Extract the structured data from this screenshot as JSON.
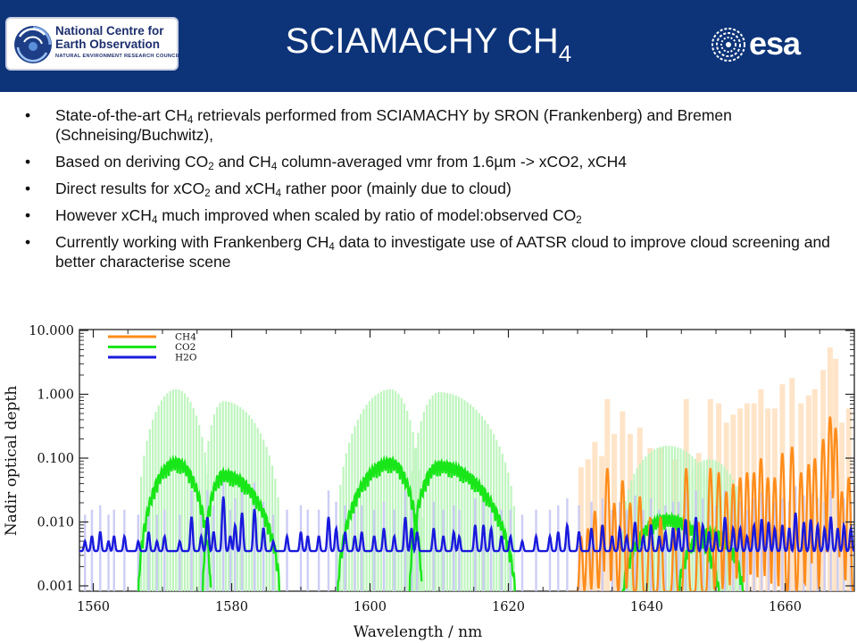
{
  "header": {
    "title_main": "SCIAMACHY CH",
    "title_sub": "4",
    "logo_left": {
      "line1": "National Centre for",
      "line2": "Earth Observation",
      "line3": "NATURAL ENVIRONMENT RESEARCH COUNCIL",
      "icon": "nceo-swirl-icon"
    },
    "logo_right": {
      "text": "esa",
      "icon": "esa-swirl-icon"
    }
  },
  "bullets": [
    [
      {
        "t": "State-of-the-art CH"
      },
      {
        "s": "4"
      },
      {
        "t": " retrievals performed from SCIAMACHY by SRON (Frankenberg) and Bremen (Schneising/Buchwitz),"
      }
    ],
    [
      {
        "t": "Based on deriving CO"
      },
      {
        "s": "2"
      },
      {
        "t": " and CH"
      },
      {
        "s": "4"
      },
      {
        "t": " column-averaged vmr from 1.6µm -> xCO2, xCH4"
      }
    ],
    [
      {
        "t": "Direct results for xCO"
      },
      {
        "s": "2"
      },
      {
        "t": " and xCH"
      },
      {
        "s": "4"
      },
      {
        "t": " rather poor (mainly due to cloud)"
      }
    ],
    [
      {
        "t": "However xCH"
      },
      {
        "s": "4"
      },
      {
        "t": " much improved when scaled by ratio of model:observed CO"
      },
      {
        "s": "2"
      }
    ],
    [
      {
        "t": "Currently working with Frankenberg CH"
      },
      {
        "s": "4"
      },
      {
        "t": " data to investigate use of AATSR cloud to improve cloud screening and better characterise scene"
      }
    ]
  ],
  "colors": {
    "header_bg": "#0d3479",
    "ch4": "#ff8c1a",
    "co2": "#19e619",
    "h2o": "#1a1adc"
  },
  "chart_data": {
    "type": "line",
    "xlabel": "Wavelength / nm",
    "ylabel": "Nadir optical depth",
    "xlim": [
      1558,
      1670
    ],
    "ylim": [
      0.001,
      10
    ],
    "yscale": "log",
    "xticks": [
      1560,
      1580,
      1600,
      1620,
      1640,
      1660
    ],
    "xtick_labels": [
      "1560",
      "1580",
      "1600",
      "1620",
      "1640",
      "1660"
    ],
    "yticks": [
      0.001,
      0.01,
      0.1,
      1,
      10
    ],
    "ytick_labels": [
      "0.001",
      "0.010",
      "0.100",
      "1.000",
      "10.000"
    ],
    "legend_position": "top-left",
    "series": [
      {
        "name": "CH4",
        "color": "#ff8c1a",
        "baseline": 0.0008,
        "peaks": [
          [
            1630.5,
            0.006
          ],
          [
            1631.5,
            0.008
          ],
          [
            1632.5,
            0.015
          ],
          [
            1633.5,
            0.009
          ],
          [
            1634.3,
            0.07
          ],
          [
            1635.3,
            0.02
          ],
          [
            1636.5,
            0.045
          ],
          [
            1637.6,
            0.02
          ],
          [
            1639,
            0.025
          ],
          [
            1640.5,
            0.012
          ],
          [
            1642,
            0.012
          ],
          [
            1644,
            0.008
          ],
          [
            1645.7,
            0.07
          ],
          [
            1647.5,
            0.01
          ],
          [
            1649.2,
            0.07
          ],
          [
            1650.4,
            0.06
          ],
          [
            1651.5,
            0.03
          ],
          [
            1652.5,
            0.04
          ],
          [
            1653.5,
            0.05
          ],
          [
            1654.5,
            0.06
          ],
          [
            1655.5,
            0.06
          ],
          [
            1656.5,
            0.1
          ],
          [
            1657.5,
            0.05
          ],
          [
            1658.5,
            0.05
          ],
          [
            1659.6,
            0.12
          ],
          [
            1661,
            0.15
          ],
          [
            1662.3,
            0.06
          ],
          [
            1663.4,
            0.08
          ],
          [
            1664.3,
            0.1
          ],
          [
            1665.5,
            0.2
          ],
          [
            1666.5,
            0.45
          ],
          [
            1667.3,
            0.3
          ],
          [
            1668.2,
            0.03
          ],
          [
            1669.2,
            0.05
          ]
        ]
      },
      {
        "name": "CO2",
        "color": "#19e619",
        "segments": [
          {
            "x0": 1566.5,
            "x1": 1577.0,
            "ymin": 0.0006,
            "peak_x": 1572.0,
            "peak_y": 0.1
          },
          {
            "x0": 1575.8,
            "x1": 1587.0,
            "ymin": 0.0006,
            "peak_x": 1578.8,
            "peak_y": 0.065
          },
          {
            "x0": 1595.3,
            "x1": 1607.5,
            "ymin": 0.0006,
            "peak_x": 1603.0,
            "peak_y": 0.1
          },
          {
            "x0": 1605.7,
            "x1": 1621.0,
            "ymin": 0.0006,
            "peak_x": 1610.0,
            "peak_y": 0.09
          },
          {
            "x0": 1636.5,
            "x1": 1650.5,
            "ymin": 0.0006,
            "peak_x": 1643.0,
            "peak_y": 0.013
          },
          {
            "x0": 1644.5,
            "x1": 1654.0,
            "ymin": 0.0006,
            "peak_x": 1649.0,
            "peak_y": 0.008
          }
        ]
      },
      {
        "name": "H2O",
        "color": "#1a1adc",
        "baseline": 0.0035,
        "peaks": [
          [
            1558.8,
            0.005
          ],
          [
            1559.8,
            0.006
          ],
          [
            1561,
            0.007
          ],
          [
            1562.2,
            0.005
          ],
          [
            1563,
            0.006
          ],
          [
            1564.5,
            0.006
          ],
          [
            1566.5,
            0.005
          ],
          [
            1568,
            0.007
          ],
          [
            1569.2,
            0.005
          ],
          [
            1570.3,
            0.006
          ],
          [
            1572.5,
            0.005
          ],
          [
            1574.2,
            0.012
          ],
          [
            1575.6,
            0.006
          ],
          [
            1576.5,
            0.012
          ],
          [
            1577.4,
            0.007
          ],
          [
            1578.8,
            0.025
          ],
          [
            1579.8,
            0.006
          ],
          [
            1580.5,
            0.009
          ],
          [
            1581.5,
            0.014
          ],
          [
            1583.3,
            0.016
          ],
          [
            1584.6,
            0.008
          ],
          [
            1586,
            0.005
          ],
          [
            1588,
            0.006
          ],
          [
            1590,
            0.007
          ],
          [
            1591,
            0.006
          ],
          [
            1592.6,
            0.006
          ],
          [
            1594,
            0.012
          ],
          [
            1595.1,
            0.008
          ],
          [
            1596.4,
            0.007
          ],
          [
            1597.8,
            0.006
          ],
          [
            1598.8,
            0.007
          ],
          [
            1600.6,
            0.006
          ],
          [
            1602,
            0.008
          ],
          [
            1603.5,
            0.006
          ],
          [
            1605.1,
            0.012
          ],
          [
            1606,
            0.008
          ],
          [
            1606.8,
            0.007
          ],
          [
            1609.2,
            0.008
          ],
          [
            1610.6,
            0.006
          ],
          [
            1612.1,
            0.007
          ],
          [
            1612.9,
            0.006
          ],
          [
            1615.2,
            0.009
          ],
          [
            1616.4,
            0.009
          ],
          [
            1617.5,
            0.008
          ],
          [
            1619,
            0.006
          ],
          [
            1620.3,
            0.006
          ],
          [
            1622,
            0.005
          ],
          [
            1624,
            0.006
          ],
          [
            1626,
            0.006
          ],
          [
            1627.2,
            0.007
          ],
          [
            1628.5,
            0.009
          ],
          [
            1630.2,
            0.007
          ],
          [
            1632,
            0.008
          ],
          [
            1633.6,
            0.009
          ],
          [
            1635,
            0.006
          ],
          [
            1636.1,
            0.008
          ],
          [
            1637.1,
            0.006
          ],
          [
            1638.3,
            0.01
          ],
          [
            1639.5,
            0.006
          ],
          [
            1640.6,
            0.009
          ],
          [
            1641.8,
            0.006
          ],
          [
            1642.7,
            0.007
          ],
          [
            1643.8,
            0.008
          ],
          [
            1644.6,
            0.008
          ],
          [
            1645.6,
            0.011
          ],
          [
            1647.1,
            0.012
          ],
          [
            1648.1,
            0.009
          ],
          [
            1649,
            0.007
          ],
          [
            1650,
            0.007
          ],
          [
            1651.3,
            0.012
          ],
          [
            1652.5,
            0.008
          ],
          [
            1653.5,
            0.008
          ],
          [
            1654.5,
            0.006
          ],
          [
            1655.5,
            0.009
          ],
          [
            1656.6,
            0.011
          ],
          [
            1657.6,
            0.01
          ],
          [
            1658.5,
            0.008
          ],
          [
            1659.6,
            0.009
          ],
          [
            1660.6,
            0.008
          ],
          [
            1661.5,
            0.014
          ],
          [
            1662.7,
            0.01
          ],
          [
            1663.7,
            0.011
          ],
          [
            1664.7,
            0.009
          ],
          [
            1665.7,
            0.008
          ],
          [
            1666.6,
            0.012
          ],
          [
            1667.6,
            0.008
          ],
          [
            1668.5,
            0.009
          ],
          [
            1669.5,
            0.008
          ]
        ]
      }
    ]
  }
}
